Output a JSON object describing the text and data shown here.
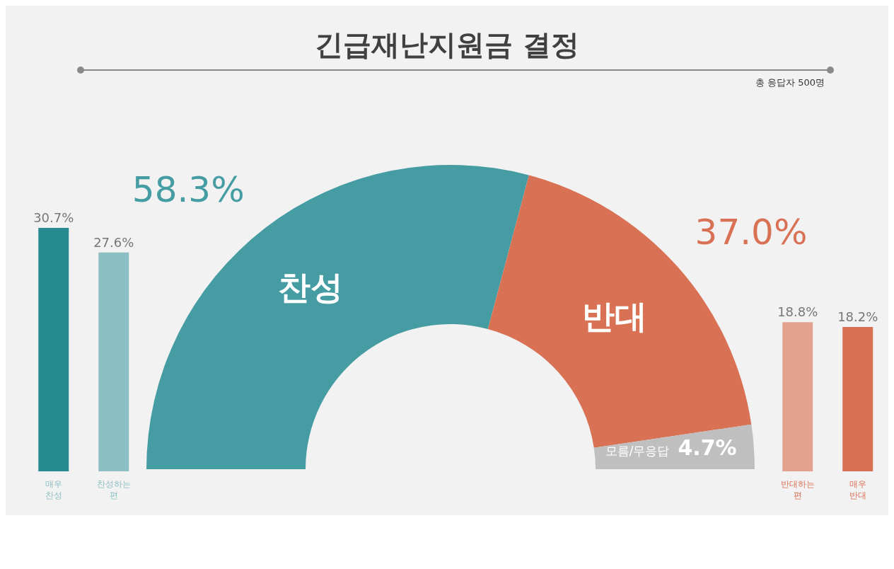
{
  "chart_data": [
    {
      "type": "donut",
      "title": "긴급재난지원금 결정",
      "subtitle": "총 응답자 500명",
      "categories": [
        "찬성",
        "반대",
        "모름/무응답"
      ],
      "values": [
        58.3,
        37.0,
        4.7
      ],
      "colors": [
        "#459ca3",
        "#d97155",
        "#c0bfbf"
      ],
      "value_labels": [
        "58.3%",
        "37.0%",
        "4.7%"
      ]
    },
    {
      "type": "bar",
      "categories": [
        "매우 찬성",
        "찬성하는 편"
      ],
      "values": [
        30.7,
        27.6
      ],
      "colors": [
        "#278a8e",
        "#8cbfc3"
      ],
      "value_labels": [
        "30.7%",
        "27.6%"
      ]
    },
    {
      "type": "bar",
      "categories": [
        "반대하는 편",
        "매우 반대"
      ],
      "values": [
        18.8,
        18.2
      ],
      "colors": [
        "#e3a190",
        "#d97155"
      ],
      "value_labels": [
        "18.8%",
        "18.2%"
      ]
    }
  ]
}
